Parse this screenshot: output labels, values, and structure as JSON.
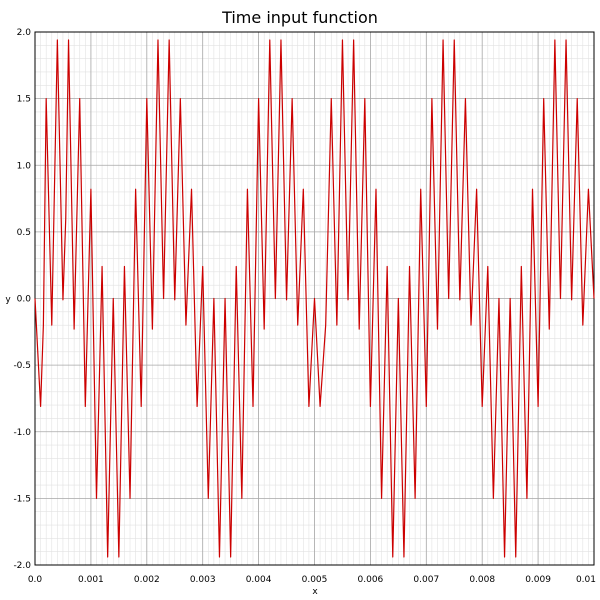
{
  "chart_data": {
    "type": "line",
    "title": "Time input function",
    "xlabel": "x",
    "ylabel": "y",
    "xlim": [
      0.0,
      0.01
    ],
    "ylim": [
      -2.0,
      2.0
    ],
    "x_ticks": [
      0.0,
      0.001,
      0.002,
      0.003,
      0.004,
      0.005,
      0.006,
      0.007,
      0.008,
      0.009,
      0.01
    ],
    "x_tick_labels": [
      "0.0",
      "0.001",
      "0.002",
      "0.003",
      "0.004",
      "0.005",
      "0.006",
      "0.007",
      "0.008",
      "0.009",
      "0.01"
    ],
    "y_ticks": [
      -2.0,
      -1.5,
      -1.0,
      -0.5,
      0.0,
      0.5,
      1.0,
      1.5,
      2.0
    ],
    "y_tick_labels": [
      "-2.0",
      "-1.5",
      "-1.0",
      "-0.5",
      "0.0",
      "0.5",
      "1.0",
      "1.5",
      "2.0"
    ],
    "grid": true,
    "series": [
      {
        "color": "#cc0000",
        "x": [
          0.0,
          0.0001,
          0.00015,
          0.0002,
          0.0003,
          0.0004,
          0.0005,
          0.00055,
          0.0006,
          0.0007,
          0.0008,
          0.0009,
          0.001,
          0.0011,
          0.0012,
          0.0013,
          0.0014,
          0.0015,
          0.0016,
          0.0017,
          0.0018,
          0.0019,
          0.002,
          0.0021,
          0.0022,
          0.0023,
          0.0024,
          0.0025,
          0.0026,
          0.0027,
          0.0028,
          0.0029,
          0.003,
          0.0031,
          0.0032,
          0.0033,
          0.0034,
          0.0035,
          0.0036,
          0.0037,
          0.0038,
          0.0039,
          0.004,
          0.0041,
          0.0042,
          0.0043,
          0.0044,
          0.0045,
          0.0046,
          0.0047,
          0.0048,
          0.0049,
          0.005,
          0.0051,
          0.0052,
          0.0053,
          0.0054,
          0.0055,
          0.0056,
          0.0057,
          0.0058,
          0.0059,
          0.006,
          0.0061,
          0.0062,
          0.0063,
          0.0064,
          0.0065,
          0.0066,
          0.0067,
          0.0068,
          0.0069,
          0.007,
          0.0071,
          0.0072,
          0.0073,
          0.0074,
          0.0075,
          0.0076,
          0.0077,
          0.0078,
          0.0079,
          0.008,
          0.0081,
          0.0082,
          0.0083,
          0.0084,
          0.0085,
          0.0086,
          0.0087,
          0.0088,
          0.0089,
          0.009,
          0.0091,
          0.0092,
          0.0093,
          0.0094,
          0.0095,
          0.0096,
          0.0097,
          0.0098,
          0.0099,
          0.01
        ],
        "y": [
          0.0,
          -0.81,
          -0.2,
          1.5,
          -0.2,
          1.94,
          -0.01,
          0.6,
          1.94,
          -0.23,
          1.5,
          -0.81,
          0.82,
          -1.5,
          0.24,
          -1.94,
          0.0,
          -1.94,
          0.24,
          -1.5,
          0.82,
          -0.81,
          1.5,
          -0.23,
          1.94,
          0.0,
          1.94,
          -0.01,
          1.5,
          -0.2,
          0.82,
          -0.81,
          0.24,
          -1.5,
          0.0,
          -1.94,
          0.0,
          -1.94,
          0.24,
          -1.5,
          0.82,
          -0.81,
          1.5,
          -0.23,
          1.94,
          0.0,
          1.94,
          -0.01,
          1.5,
          -0.2,
          0.82,
          -0.81,
          0.0,
          -0.81,
          -0.2,
          1.5,
          -0.2,
          1.94,
          -0.01,
          1.94,
          -0.23,
          1.5,
          -0.81,
          0.82,
          -1.5,
          0.24,
          -1.94,
          0.0,
          -1.94,
          0.24,
          -1.5,
          0.82,
          -0.81,
          1.5,
          -0.23,
          1.94,
          0.0,
          1.94,
          -0.01,
          1.5,
          -0.2,
          0.82,
          -0.81,
          0.24,
          -1.5,
          0.0,
          -1.94,
          0.0,
          -1.94,
          0.24,
          -1.5,
          0.82,
          -0.81,
          1.5,
          -0.23,
          1.94,
          0.0,
          1.94,
          -0.01,
          1.5,
          -0.2,
          0.82,
          0.0
        ]
      }
    ]
  }
}
